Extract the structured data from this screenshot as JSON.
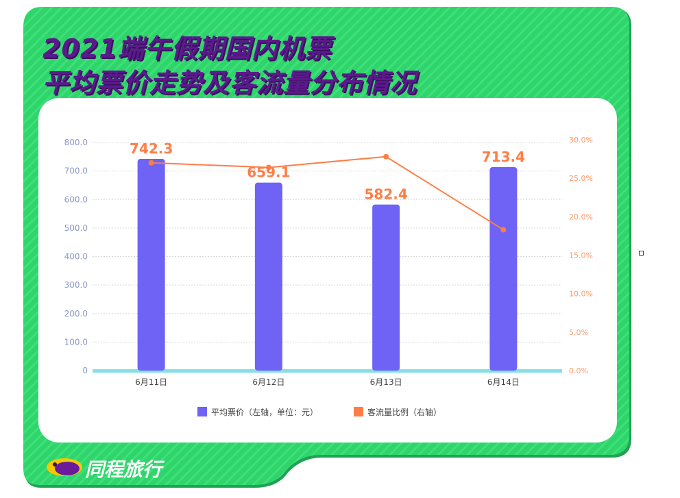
{
  "header": {
    "title_line1": "2021端午假期国内机票",
    "title_line2": "平均票价走势及客流量分布情况"
  },
  "brand": {
    "name": "同程旅行"
  },
  "colors": {
    "background_green": "#2fd46b",
    "title_purple": "#5b1a8c",
    "bar": "#6e63f5",
    "line": "#ff7d45",
    "baseline": "#86dfe6",
    "left_axis_text": "#8c97c8",
    "right_axis_text": "#ff9a6c"
  },
  "chart_data": {
    "type": "bar",
    "categories": [
      "6月11日",
      "6月12日",
      "6月13日",
      "6月14日"
    ],
    "series": [
      {
        "name": "平均票价（左轴，单位：元）",
        "type": "bar",
        "axis": "left",
        "values": [
          742.3,
          659.1,
          582.4,
          713.4
        ],
        "labels": [
          "742.3",
          "659.1",
          "582.4",
          "713.4"
        ]
      },
      {
        "name": "客流量比例（右轴）",
        "type": "line",
        "axis": "right",
        "values": [
          27.0,
          26.4,
          27.8,
          18.3
        ]
      }
    ],
    "left_axis": {
      "ylim": [
        0,
        800
      ],
      "ticks": [
        "0",
        "100.0",
        "200.0",
        "300.0",
        "400.0",
        "500.0",
        "600.0",
        "700.0",
        "800.0"
      ]
    },
    "right_axis": {
      "ylim": [
        0,
        30
      ],
      "ticks": [
        "0.0%",
        "5.0%",
        "10.0%",
        "15.0%",
        "20.0%",
        "25.0%",
        "30.0%"
      ]
    },
    "grid": true,
    "legend_position": "bottom"
  }
}
